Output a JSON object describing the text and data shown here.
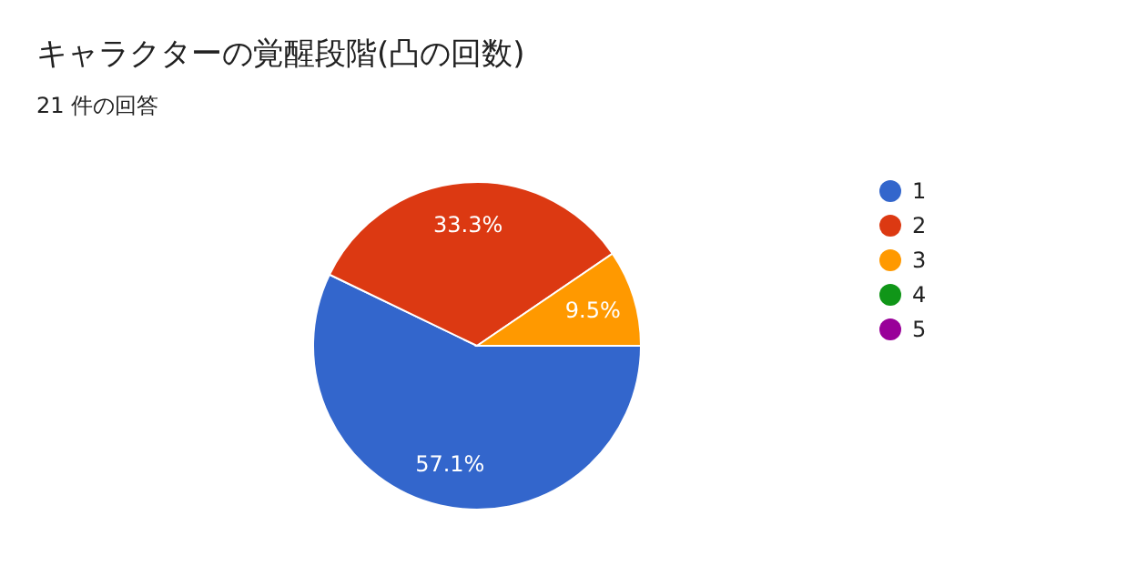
{
  "chart_data": {
    "type": "pie",
    "title": "キャラクターの覚醒段階(凸の回数)",
    "subtitle": "21 件の回答",
    "categories": [
      "1",
      "2",
      "3",
      "4",
      "5"
    ],
    "values": [
      57.1,
      33.3,
      9.5,
      0,
      0
    ],
    "colors": [
      "#3366cc",
      "#dc3912",
      "#ff9900",
      "#109618",
      "#990099"
    ],
    "value_labels": [
      "57.1%",
      "33.3%",
      "9.5%",
      null,
      null
    ],
    "legend": "right"
  }
}
